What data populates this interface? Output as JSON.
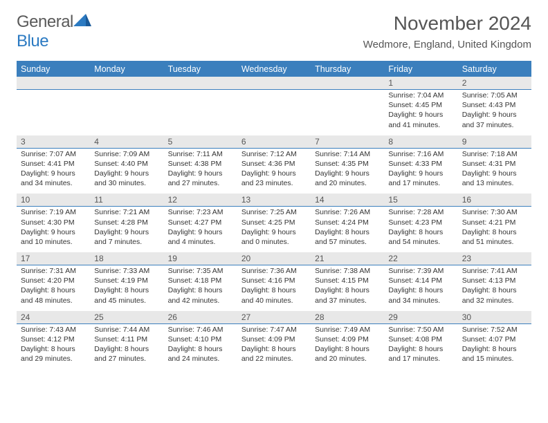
{
  "logo": {
    "part1": "General",
    "part2": "Blue",
    "tri_color": "#2b7ac2"
  },
  "title": "November 2024",
  "location": "Wedmore, England, United Kingdom",
  "colors": {
    "header_bg": "#3b7fbd",
    "header_text": "#ffffff",
    "num_row_bg": "#e8e8e8",
    "border": "#3b7fbd",
    "body_text": "#333333"
  },
  "days_of_week": [
    "Sunday",
    "Monday",
    "Tuesday",
    "Wednesday",
    "Thursday",
    "Friday",
    "Saturday"
  ],
  "weeks": [
    {
      "nums": [
        "",
        "",
        "",
        "",
        "",
        "1",
        "2"
      ],
      "cells": [
        null,
        null,
        null,
        null,
        null,
        {
          "sunrise": "7:04 AM",
          "sunset": "4:45 PM",
          "daylight": "9 hours and 41 minutes."
        },
        {
          "sunrise": "7:05 AM",
          "sunset": "4:43 PM",
          "daylight": "9 hours and 37 minutes."
        }
      ]
    },
    {
      "nums": [
        "3",
        "4",
        "5",
        "6",
        "7",
        "8",
        "9"
      ],
      "cells": [
        {
          "sunrise": "7:07 AM",
          "sunset": "4:41 PM",
          "daylight": "9 hours and 34 minutes."
        },
        {
          "sunrise": "7:09 AM",
          "sunset": "4:40 PM",
          "daylight": "9 hours and 30 minutes."
        },
        {
          "sunrise": "7:11 AM",
          "sunset": "4:38 PM",
          "daylight": "9 hours and 27 minutes."
        },
        {
          "sunrise": "7:12 AM",
          "sunset": "4:36 PM",
          "daylight": "9 hours and 23 minutes."
        },
        {
          "sunrise": "7:14 AM",
          "sunset": "4:35 PM",
          "daylight": "9 hours and 20 minutes."
        },
        {
          "sunrise": "7:16 AM",
          "sunset": "4:33 PM",
          "daylight": "9 hours and 17 minutes."
        },
        {
          "sunrise": "7:18 AM",
          "sunset": "4:31 PM",
          "daylight": "9 hours and 13 minutes."
        }
      ]
    },
    {
      "nums": [
        "10",
        "11",
        "12",
        "13",
        "14",
        "15",
        "16"
      ],
      "cells": [
        {
          "sunrise": "7:19 AM",
          "sunset": "4:30 PM",
          "daylight": "9 hours and 10 minutes."
        },
        {
          "sunrise": "7:21 AM",
          "sunset": "4:28 PM",
          "daylight": "9 hours and 7 minutes."
        },
        {
          "sunrise": "7:23 AM",
          "sunset": "4:27 PM",
          "daylight": "9 hours and 4 minutes."
        },
        {
          "sunrise": "7:25 AM",
          "sunset": "4:25 PM",
          "daylight": "9 hours and 0 minutes."
        },
        {
          "sunrise": "7:26 AM",
          "sunset": "4:24 PM",
          "daylight": "8 hours and 57 minutes."
        },
        {
          "sunrise": "7:28 AM",
          "sunset": "4:23 PM",
          "daylight": "8 hours and 54 minutes."
        },
        {
          "sunrise": "7:30 AM",
          "sunset": "4:21 PM",
          "daylight": "8 hours and 51 minutes."
        }
      ]
    },
    {
      "nums": [
        "17",
        "18",
        "19",
        "20",
        "21",
        "22",
        "23"
      ],
      "cells": [
        {
          "sunrise": "7:31 AM",
          "sunset": "4:20 PM",
          "daylight": "8 hours and 48 minutes."
        },
        {
          "sunrise": "7:33 AM",
          "sunset": "4:19 PM",
          "daylight": "8 hours and 45 minutes."
        },
        {
          "sunrise": "7:35 AM",
          "sunset": "4:18 PM",
          "daylight": "8 hours and 42 minutes."
        },
        {
          "sunrise": "7:36 AM",
          "sunset": "4:16 PM",
          "daylight": "8 hours and 40 minutes."
        },
        {
          "sunrise": "7:38 AM",
          "sunset": "4:15 PM",
          "daylight": "8 hours and 37 minutes."
        },
        {
          "sunrise": "7:39 AM",
          "sunset": "4:14 PM",
          "daylight": "8 hours and 34 minutes."
        },
        {
          "sunrise": "7:41 AM",
          "sunset": "4:13 PM",
          "daylight": "8 hours and 32 minutes."
        }
      ]
    },
    {
      "nums": [
        "24",
        "25",
        "26",
        "27",
        "28",
        "29",
        "30"
      ],
      "cells": [
        {
          "sunrise": "7:43 AM",
          "sunset": "4:12 PM",
          "daylight": "8 hours and 29 minutes."
        },
        {
          "sunrise": "7:44 AM",
          "sunset": "4:11 PM",
          "daylight": "8 hours and 27 minutes."
        },
        {
          "sunrise": "7:46 AM",
          "sunset": "4:10 PM",
          "daylight": "8 hours and 24 minutes."
        },
        {
          "sunrise": "7:47 AM",
          "sunset": "4:09 PM",
          "daylight": "8 hours and 22 minutes."
        },
        {
          "sunrise": "7:49 AM",
          "sunset": "4:09 PM",
          "daylight": "8 hours and 20 minutes."
        },
        {
          "sunrise": "7:50 AM",
          "sunset": "4:08 PM",
          "daylight": "8 hours and 17 minutes."
        },
        {
          "sunrise": "7:52 AM",
          "sunset": "4:07 PM",
          "daylight": "8 hours and 15 minutes."
        }
      ]
    }
  ]
}
